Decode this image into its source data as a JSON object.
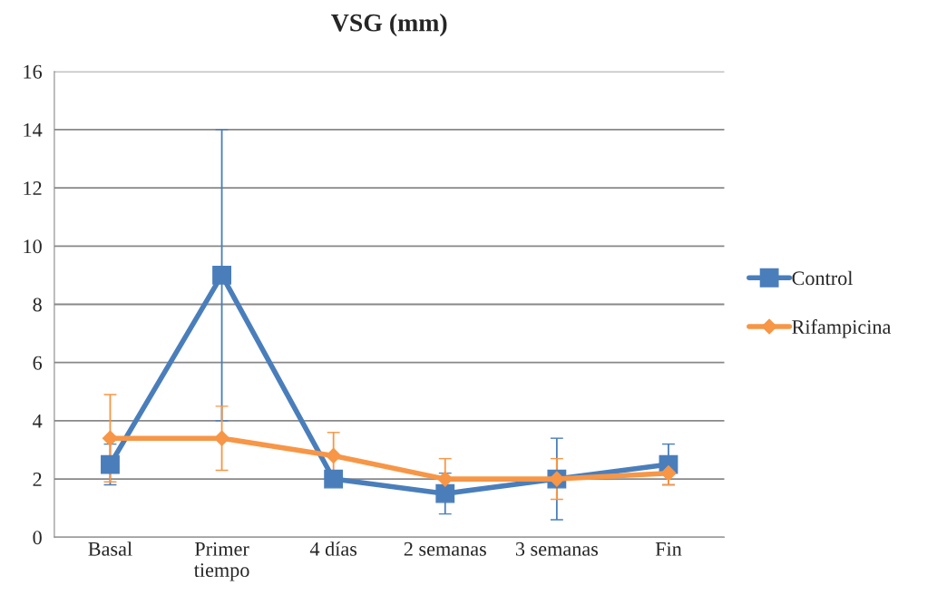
{
  "chart_data": {
    "type": "line",
    "title": "VSG (mm)",
    "categories": [
      "Basal",
      "Primer\ntiempo",
      "4 días",
      "2 semanas",
      "3 semanas",
      "Fin"
    ],
    "series": [
      {
        "name": "Control",
        "color": "#4a7ebb",
        "marker": "square",
        "values": [
          2.5,
          9,
          2,
          1.5,
          2,
          2.5
        ],
        "errors": [
          0.7,
          5,
          null,
          0.7,
          1.4,
          0.7
        ]
      },
      {
        "name": "Rifampicina",
        "color": "#f79646",
        "marker": "diamond",
        "values": [
          3.4,
          3.4,
          2.8,
          2.0,
          2.0,
          2.2
        ],
        "errors": [
          1.5,
          1.1,
          0.8,
          0.7,
          0.7,
          0.4
        ]
      }
    ],
    "ylim": [
      0,
      16
    ],
    "yticks": [
      0,
      2,
      4,
      6,
      8,
      10,
      12,
      14,
      16
    ],
    "grid": "y",
    "legend": "right"
  }
}
